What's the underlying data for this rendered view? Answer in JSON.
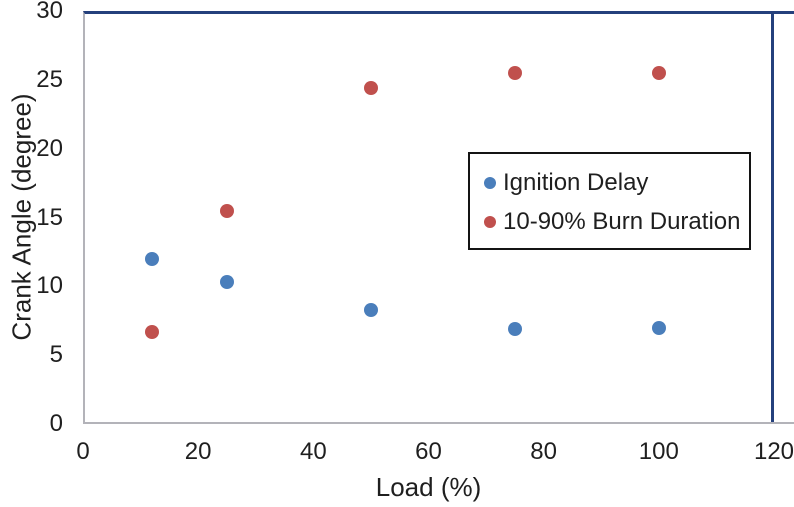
{
  "figure": {
    "background": "#ffffff",
    "x_axis": {
      "title": "Load (%)",
      "ticks": [
        0,
        20,
        40,
        60,
        80,
        100,
        120
      ],
      "min": 0,
      "max": 120
    },
    "y_axis": {
      "title": "Crank Angle (degree)",
      "ticks": [
        0,
        5,
        10,
        15,
        20,
        25,
        30
      ],
      "min": 0,
      "max": 30
    },
    "colors": {
      "series_blue": "#4a7ebb",
      "series_red": "#c0504d",
      "plot_border_navy": "#24407c",
      "axis_gray": "#b3b3b9",
      "legend_border": "#141414",
      "text": "#1f1f1f"
    }
  },
  "chart_data": {
    "type": "scatter",
    "title": "",
    "xlabel": "Load (%)",
    "ylabel": "Crank Angle (degree)",
    "xlim": [
      0,
      120
    ],
    "ylim": [
      0,
      30
    ],
    "x_ticks": [
      0,
      20,
      40,
      60,
      80,
      100,
      120
    ],
    "y_ticks": [
      0,
      5,
      10,
      15,
      20,
      25,
      30
    ],
    "grid": false,
    "legend_position": "middle-right",
    "series": [
      {
        "name": "Ignition Delay",
        "color": "#4a7ebb",
        "points": [
          [
            12,
            12.0
          ],
          [
            25,
            10.3
          ],
          [
            50,
            8.3
          ],
          [
            75,
            6.9
          ],
          [
            100,
            7.0
          ]
        ]
      },
      {
        "name": "10-90% Burn Duration",
        "color": "#c0504d",
        "points": [
          [
            12,
            6.7
          ],
          [
            25,
            15.5
          ],
          [
            50,
            24.4
          ],
          [
            75,
            25.5
          ],
          [
            100,
            25.5
          ]
        ]
      }
    ]
  }
}
